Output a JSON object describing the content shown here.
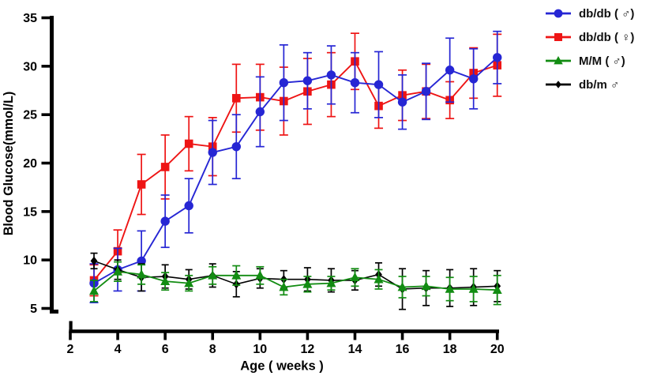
{
  "figure": {
    "background": "#ffffff"
  },
  "chart_data": {
    "type": "line",
    "title": "",
    "xlabel": "Age ( weeks )",
    "ylabel": "Blood Glucose(mmol/L)",
    "xlim": [
      2,
      20.5
    ],
    "ylim": [
      5,
      35
    ],
    "xticks": [
      2,
      4,
      6,
      8,
      10,
      12,
      14,
      16,
      18,
      20
    ],
    "yticks": [
      5,
      10,
      15,
      20,
      25,
      30,
      35
    ],
    "grid": false,
    "error_bars": true,
    "legend_position": "top-right",
    "x": [
      3,
      4,
      5,
      6,
      7,
      8,
      9,
      10,
      11,
      12,
      13,
      14,
      15,
      16,
      17,
      18,
      19,
      20
    ],
    "series": [
      {
        "name": "db/db ( ♂)",
        "marker": "circle",
        "color": "#2626d4",
        "values": [
          7.6,
          9.0,
          9.9,
          14.0,
          15.6,
          21.1,
          21.7,
          25.3,
          28.3,
          28.5,
          29.1,
          28.3,
          28.1,
          26.3,
          27.4,
          29.6,
          28.7,
          30.9
        ],
        "errors": [
          2.0,
          2.2,
          3.1,
          2.7,
          2.8,
          3.3,
          3.3,
          3.6,
          3.9,
          2.9,
          3.0,
          3.1,
          3.4,
          2.8,
          2.9,
          3.3,
          3.1,
          2.7
        ]
      },
      {
        "name": "db/db ( ♀)",
        "marker": "square",
        "color": "#ee1414",
        "values": [
          7.9,
          10.9,
          17.8,
          19.6,
          22.0,
          21.7,
          26.7,
          26.8,
          26.4,
          27.4,
          28.1,
          30.5,
          25.9,
          27.0,
          27.4,
          26.5,
          29.3,
          30.1
        ],
        "errors": [
          1.6,
          2.2,
          3.1,
          3.3,
          2.8,
          3.0,
          3.5,
          3.4,
          3.5,
          3.4,
          3.3,
          2.9,
          2.3,
          2.6,
          2.8,
          1.9,
          2.6,
          3.2
        ]
      },
      {
        "name": "M/M ( ♂)",
        "marker": "triangle",
        "color": "#128c12",
        "values": [
          6.8,
          8.8,
          8.5,
          7.8,
          7.6,
          8.4,
          8.4,
          8.4,
          7.2,
          7.5,
          7.6,
          8.2,
          8.0,
          7.2,
          7.3,
          7.0,
          7.0,
          6.9
        ],
        "errors": [
          1.1,
          1.0,
          1.0,
          0.9,
          0.8,
          0.9,
          1.0,
          0.9,
          0.8,
          0.8,
          0.7,
          0.9,
          1.0,
          1.1,
          1.0,
          1.2,
          1.3,
          1.5
        ]
      },
      {
        "name": "db/m ♂",
        "marker": "diamond",
        "color": "#000000",
        "values": [
          9.9,
          9.0,
          8.2,
          8.3,
          8.0,
          8.4,
          7.5,
          8.1,
          8.0,
          8.0,
          7.9,
          7.9,
          8.5,
          7.0,
          7.1,
          7.1,
          7.2,
          7.3
        ],
        "errors": [
          0.8,
          1.0,
          1.4,
          1.2,
          1.0,
          1.2,
          1.3,
          1.0,
          0.9,
          1.2,
          1.2,
          1.0,
          1.2,
          2.1,
          1.8,
          1.9,
          1.9,
          1.6
        ]
      }
    ]
  }
}
